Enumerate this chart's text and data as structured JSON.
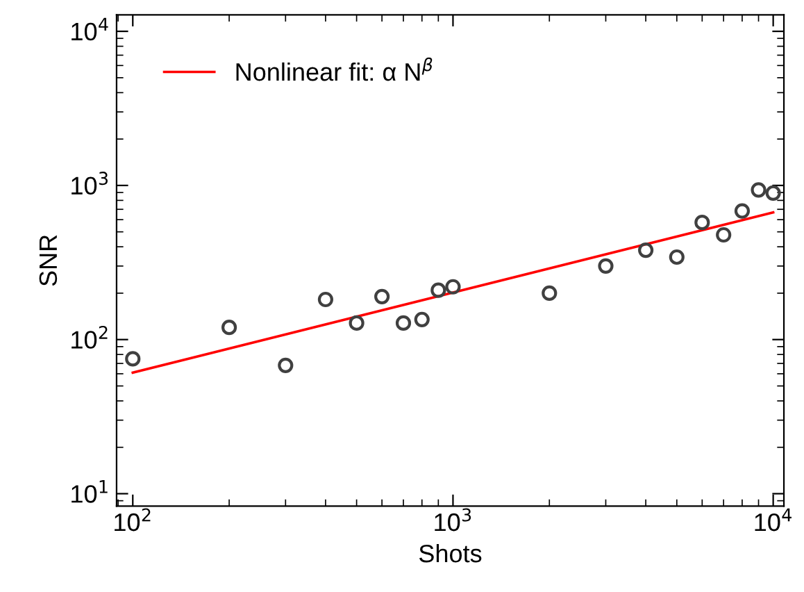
{
  "chart_data": {
    "type": "scatter",
    "xlabel": "Shots",
    "ylabel": "SNR",
    "log": "xy",
    "grid": false,
    "legend": "top left",
    "marker": "circle",
    "xlim": [
      89,
      10800
    ],
    "ylim": [
      8.3,
      12800
    ],
    "xticks": [
      {
        "value": 100,
        "label": "10$^{2}$"
      },
      {
        "value": 1000,
        "label": "10$^{3}$"
      },
      {
        "value": 10000,
        "label": "10$^{4}$"
      }
    ],
    "yticks": [
      {
        "value": 10,
        "label": "10$^{1}$"
      },
      {
        "value": 100,
        "label": "10$^{2}$"
      },
      {
        "value": 1000,
        "label": "10$^{3}$"
      },
      {
        "value": 10000,
        "label": "10$^{4}$"
      }
    ],
    "x": [
      100,
      200,
      300,
      400,
      500,
      600,
      700,
      800,
      900,
      1000,
      2000,
      3000,
      4000,
      5000,
      6000,
      7000,
      8000,
      9000,
      10000
    ],
    "series": [
      {
        "color": "#404040",
        "values": [
          75,
          120,
          68,
          182,
          128,
          190,
          128,
          135,
          209,
          220,
          200,
          300,
          380,
          343,
          575,
          478,
          683,
          935,
          893
        ]
      },
      {
        "type": "line",
        "name": "Nonlinear fit: α N$^{β}$",
        "color": "#ff0000",
        "marker": "none",
        "x": [
          100,
          10000
        ],
        "values": [
          61,
          668
        ]
      }
    ]
  }
}
